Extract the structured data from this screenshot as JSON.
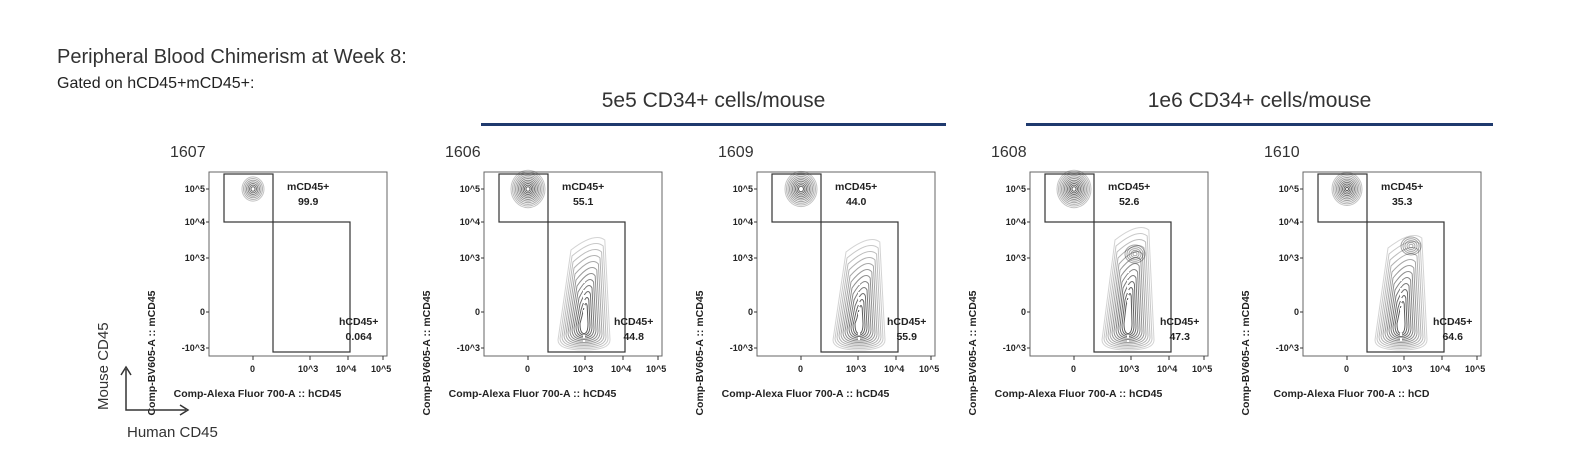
{
  "title": "Peripheral Blood Chimerism at Week 8:",
  "subtitle": "Gated on hCD45+mCD45+:",
  "groups": [
    {
      "label": "5e5 CD34+ cells/mouse"
    },
    {
      "label": "1e6 CD34+ cells/mouse"
    }
  ],
  "axis_legend": {
    "y": "Mouse CD45",
    "x": "Human CD45"
  },
  "chart_data": [
    {
      "type": "contour",
      "sample": "1607",
      "xlabel": "Comp-Alexa Fluor 700-A :: hCD45",
      "ylabel": "Comp-BV605-A :: mCD45",
      "x_ticks": [
        "0",
        "10^3",
        "10^4",
        "10^5"
      ],
      "y_ticks": [
        "10^5",
        "10^4",
        "10^3",
        "0",
        "-10^3"
      ],
      "gates": [
        {
          "name": "mCD45+",
          "value": "99.9"
        },
        {
          "name": "hCD45+",
          "value": "0.064"
        }
      ]
    },
    {
      "type": "contour",
      "sample": "1606",
      "group": "5e5 CD34+ cells/mouse",
      "xlabel": "Comp-Alexa Fluor 700-A :: hCD45",
      "ylabel": "Comp-BV605-A :: mCD45",
      "x_ticks": [
        "0",
        "10^3",
        "10^4",
        "10^5"
      ],
      "y_ticks": [
        "10^5",
        "10^4",
        "10^3",
        "0",
        "-10^3"
      ],
      "gates": [
        {
          "name": "mCD45+",
          "value": "55.1"
        },
        {
          "name": "hCD45+",
          "value": "44.8"
        }
      ]
    },
    {
      "type": "contour",
      "sample": "1609",
      "group": "5e5 CD34+ cells/mouse",
      "xlabel": "Comp-Alexa Fluor 700-A :: hCD45",
      "ylabel": "Comp-BV605-A :: mCD45",
      "x_ticks": [
        "0",
        "10^3",
        "10^4",
        "10^5"
      ],
      "y_ticks": [
        "10^5",
        "10^4",
        "10^3",
        "0",
        "-10^3"
      ],
      "gates": [
        {
          "name": "mCD45+",
          "value": "44.0"
        },
        {
          "name": "hCD45+",
          "value": "55.9"
        }
      ]
    },
    {
      "type": "contour",
      "sample": "1608",
      "group": "1e6 CD34+ cells/mouse",
      "xlabel": "Comp-Alexa Fluor 700-A :: hCD45",
      "ylabel": "Comp-BV605-A :: mCD45",
      "x_ticks": [
        "0",
        "10^3",
        "10^4",
        "10^5"
      ],
      "y_ticks": [
        "10^5",
        "10^4",
        "10^3",
        "0",
        "-10^3"
      ],
      "gates": [
        {
          "name": "mCD45+",
          "value": "52.6"
        },
        {
          "name": "hCD45+",
          "value": "47.3"
        }
      ]
    },
    {
      "type": "contour",
      "sample": "1610",
      "group": "1e6 CD34+ cells/mouse",
      "xlabel": "Comp-Alexa Fluor 700-A :: hCD",
      "ylabel": "Comp-BV605-A :: mCD45",
      "x_ticks": [
        "0",
        "10^3",
        "10^4",
        "10^5"
      ],
      "y_ticks": [
        "10^5",
        "10^4",
        "10^3",
        "0",
        "-10^3"
      ],
      "gates": [
        {
          "name": "mCD45+",
          "value": "35.3"
        },
        {
          "name": "hCD45+",
          "value": "64.6"
        }
      ]
    }
  ]
}
